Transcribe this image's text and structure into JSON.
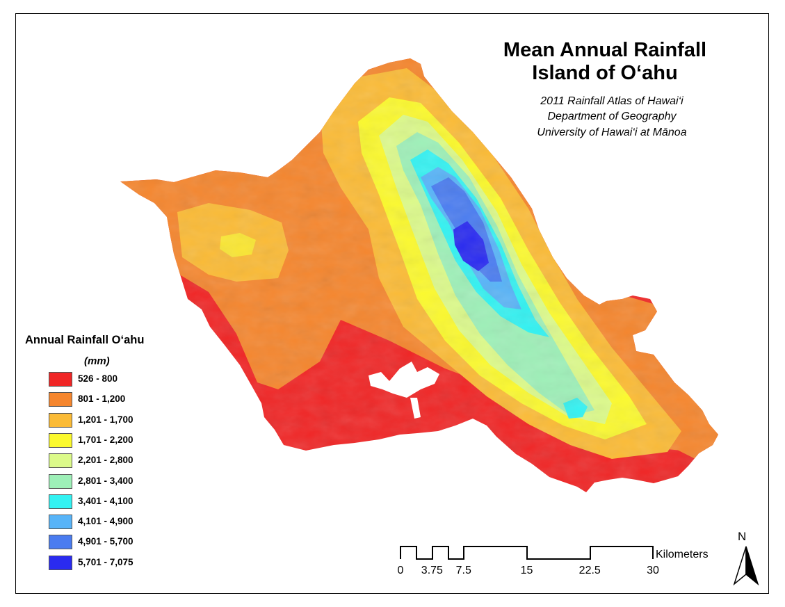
{
  "title_line1": "Mean Annual Rainfall",
  "title_line2": "Island of O‘ahu",
  "subtitle_line1": "2011 Rainfall Atlas of Hawai‘i",
  "subtitle_line2": "Department of Geography",
  "subtitle_line3": "University of Hawai‘i at Mānoa",
  "legend": {
    "title": "Annual Rainfall O‘ahu",
    "units": "(mm)",
    "items": [
      {
        "label": "526 - 800",
        "color": "#f02626"
      },
      {
        "label": "801 - 1,200",
        "color": "#f5862e"
      },
      {
        "label": "1,201 - 1,700",
        "color": "#fbbb36"
      },
      {
        "label": "1,701 - 2,200",
        "color": "#fbf92e"
      },
      {
        "label": "2,201 - 2,800",
        "color": "#dcfa8a"
      },
      {
        "label": "2,801 - 3,400",
        "color": "#9ef0b8"
      },
      {
        "label": "3,401 - 4,100",
        "color": "#33f2f2"
      },
      {
        "label": "4,101 - 4,900",
        "color": "#58b4f8"
      },
      {
        "label": "4,901 - 5,700",
        "color": "#4a7cf0"
      },
      {
        "label": "5,701 - 7,075",
        "color": "#2a2bf0"
      }
    ]
  },
  "scale_bar": {
    "unit": "Kilometers",
    "labels": [
      "0",
      "3.75",
      "7.5",
      "15",
      "22.5",
      "30"
    ]
  },
  "north_arrow": {
    "label": "N",
    "icon": "north-arrow-icon"
  }
}
